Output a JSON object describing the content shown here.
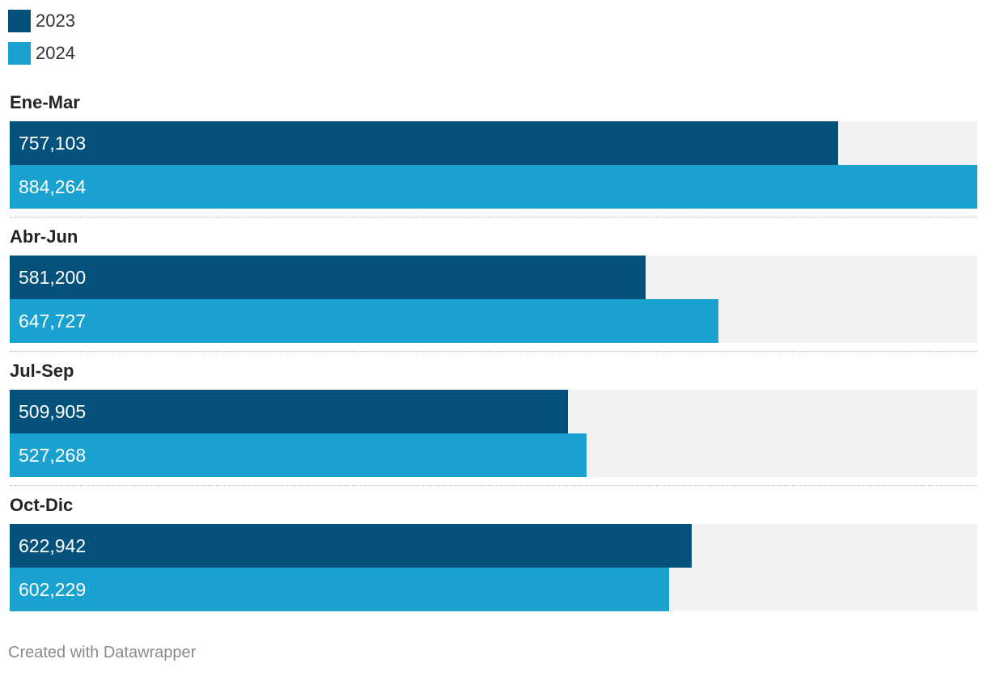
{
  "legend": [
    {
      "label": "2023",
      "color": "#04527c"
    },
    {
      "label": "2024",
      "color": "#19a1cf"
    }
  ],
  "colors": {
    "track": "#f2f2f2"
  },
  "chart_data": {
    "type": "bar",
    "orientation": "horizontal",
    "categories": [
      "Ene-Mar",
      "Abr-Jun",
      "Jul-Sep",
      "Oct-Dic"
    ],
    "series": [
      {
        "name": "2023",
        "values": [
          757103,
          581200,
          509905,
          622942
        ],
        "labels": [
          "757,103",
          "581,200",
          "509,905",
          "622,942"
        ]
      },
      {
        "name": "2024",
        "values": [
          884264,
          647727,
          527268,
          602229
        ],
        "labels": [
          "884,264",
          "647,727",
          "527,268",
          "602,229"
        ]
      }
    ],
    "xlim": [
      0,
      884264
    ],
    "grid": false,
    "legend_position": "top-left"
  },
  "footer": "Created with Datawrapper"
}
